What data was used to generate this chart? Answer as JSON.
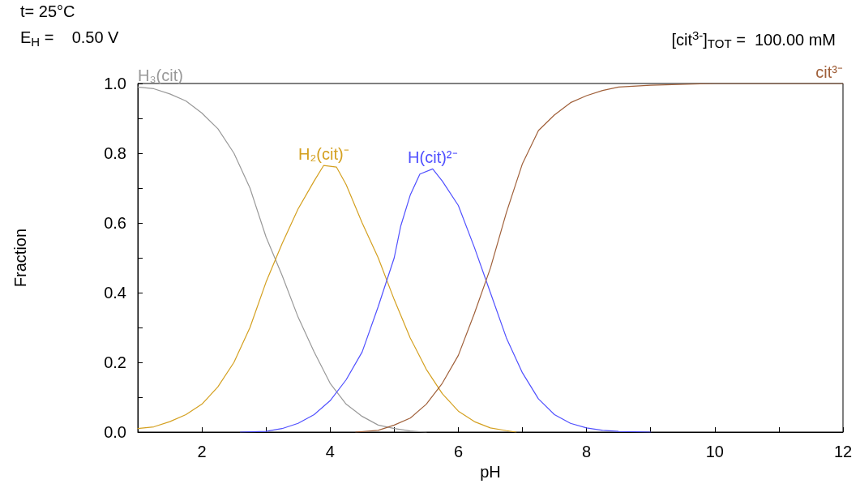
{
  "chart_data": {
    "type": "line",
    "xlabel": "pH",
    "ylabel": "Fraction",
    "annotations": [
      "t= 25°C",
      "E$_{H}$ =    0.50 V",
      "[cit$^{3-}$]$_{TOT}$ =  100.00 mM"
    ],
    "xlim": [
      1,
      12
    ],
    "xticks": [
      {
        "value": 1,
        "label": null
      },
      2,
      {
        "value": 3,
        "label": null
      },
      4,
      {
        "value": 5,
        "label": null
      },
      6,
      {
        "value": 7,
        "label": null
      },
      8,
      {
        "value": 9,
        "label": null
      },
      10,
      {
        "value": 11,
        "label": null
      },
      12
    ],
    "ylim": [
      0,
      1
    ],
    "yticks": [
      {
        "value": 0,
        "label": "0.0"
      },
      {
        "value": 0.1,
        "label": null
      },
      {
        "value": 0.2,
        "label": "0.2"
      },
      {
        "value": 0.3,
        "label": null
      },
      {
        "value": 0.4,
        "label": "0.4"
      },
      {
        "value": 0.5,
        "label": null
      },
      {
        "value": 0.6,
        "label": "0.6"
      },
      {
        "value": 0.7,
        "label": null
      },
      {
        "value": 0.8,
        "label": "0.8"
      },
      {
        "value": 0.9,
        "label": null
      },
      {
        "value": 1,
        "label": "1.0"
      }
    ],
    "grid": false,
    "legend": false,
    "marker": "none",
    "line_style": "solid",
    "series": [
      {
        "name": "H₃(cit)",
        "color": "#999999",
        "x": [
          1,
          1.25,
          1.5,
          1.75,
          2,
          2.25,
          2.5,
          2.75,
          3,
          3.25,
          3.5,
          3.75,
          4,
          4.25,
          4.5,
          4.75,
          5,
          5.25,
          5.5
        ],
        "values": [
          0.99,
          0.985,
          0.97,
          0.95,
          0.915,
          0.87,
          0.8,
          0.7,
          0.56,
          0.45,
          0.33,
          0.23,
          0.14,
          0.08,
          0.045,
          0.02,
          0.01,
          0.003,
          0
        ]
      },
      {
        "name": "H₂(cit)⁻",
        "color": "#d4a020",
        "x": [
          1,
          1.25,
          1.5,
          1.75,
          2,
          2.25,
          2.5,
          2.75,
          3,
          3.25,
          3.5,
          3.75,
          3.9,
          4.1,
          4.25,
          4.5,
          4.75,
          5,
          5.25,
          5.5,
          5.75,
          6,
          6.25,
          6.5,
          6.75,
          6.9
        ],
        "values": [
          0.01,
          0.015,
          0.03,
          0.05,
          0.08,
          0.13,
          0.2,
          0.3,
          0.43,
          0.54,
          0.64,
          0.72,
          0.765,
          0.76,
          0.71,
          0.6,
          0.5,
          0.38,
          0.27,
          0.18,
          0.11,
          0.06,
          0.03,
          0.012,
          0.004,
          0
        ]
      },
      {
        "name": "H(cit)²⁻",
        "color": "#5050ff",
        "x": [
          2.6,
          3,
          3.25,
          3.5,
          3.75,
          4,
          4.25,
          4.5,
          4.75,
          5,
          5.1,
          5.25,
          5.4,
          5.6,
          5.75,
          6,
          6.25,
          6.5,
          6.75,
          7,
          7.25,
          7.5,
          7.75,
          8,
          8.25,
          8.5,
          9
        ],
        "values": [
          0,
          0.002,
          0.01,
          0.025,
          0.05,
          0.09,
          0.15,
          0.23,
          0.36,
          0.5,
          0.59,
          0.68,
          0.74,
          0.755,
          0.72,
          0.65,
          0.53,
          0.4,
          0.27,
          0.17,
          0.095,
          0.05,
          0.025,
          0.012,
          0.005,
          0.002,
          0
        ]
      },
      {
        "name": "cit³⁻",
        "color": "#a0603a",
        "x": [
          4.4,
          4.75,
          5,
          5.25,
          5.5,
          5.75,
          6,
          6.25,
          6.5,
          6.75,
          7,
          7.25,
          7.5,
          7.75,
          8,
          8.25,
          8.5,
          9,
          10,
          12
        ],
        "values": [
          0,
          0.005,
          0.02,
          0.04,
          0.08,
          0.14,
          0.22,
          0.34,
          0.47,
          0.63,
          0.77,
          0.865,
          0.91,
          0.945,
          0.965,
          0.98,
          0.99,
          0.995,
          1,
          1
        ]
      }
    ]
  }
}
